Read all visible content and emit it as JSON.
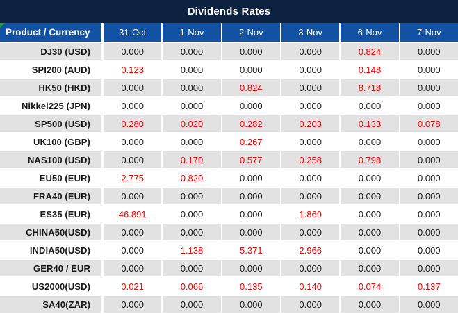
{
  "title": "Dividends Rates",
  "table": {
    "product_header": "Product / Currency",
    "date_headers": [
      "31-Oct",
      "1-Nov",
      "2-Nov",
      "3-Nov",
      "6-Nov",
      "7-Nov"
    ],
    "zero_value": "0.000",
    "rows": [
      {
        "product": "DJ30 (USD)",
        "values": [
          "0.000",
          "0.000",
          "0.000",
          "0.000",
          "0.824",
          "0.000"
        ]
      },
      {
        "product": "SPI200 (AUD)",
        "values": [
          "0.123",
          "0.000",
          "0.000",
          "0.000",
          "0.148",
          "0.000"
        ]
      },
      {
        "product": "HK50 (HKD)",
        "values": [
          "0.000",
          "0.000",
          "0.824",
          "0.000",
          "8.718",
          "0.000"
        ]
      },
      {
        "product": "Nikkei225 (JPN)",
        "values": [
          "0.000",
          "0.000",
          "0.000",
          "0.000",
          "0.000",
          "0.000"
        ]
      },
      {
        "product": "SP500 (USD)",
        "values": [
          "0.280",
          "0.020",
          "0.282",
          "0.203",
          "0.133",
          "0.078"
        ]
      },
      {
        "product": "UK100 (GBP)",
        "values": [
          "0.000",
          "0.000",
          "0.267",
          "0.000",
          "0.000",
          "0.000"
        ]
      },
      {
        "product": "NAS100 (USD)",
        "values": [
          "0.000",
          "0.170",
          "0.577",
          "0.258",
          "0.798",
          "0.000"
        ]
      },
      {
        "product": "EU50 (EUR)",
        "values": [
          "2.775",
          "0.820",
          "0.000",
          "0.000",
          "0.000",
          "0.000"
        ]
      },
      {
        "product": "FRA40 (EUR)",
        "values": [
          "0.000",
          "0.000",
          "0.000",
          "0.000",
          "0.000",
          "0.000"
        ]
      },
      {
        "product": "ES35 (EUR)",
        "values": [
          "46.891",
          "0.000",
          "0.000",
          "1.869",
          "0.000",
          "0.000"
        ]
      },
      {
        "product": "CHINA50(USD)",
        "values": [
          "0.000",
          "0.000",
          "0.000",
          "0.000",
          "0.000",
          "0.000"
        ]
      },
      {
        "product": "INDIA50(USD)",
        "values": [
          "0.000",
          "1.138",
          "5.371",
          "2.966",
          "0.000",
          "0.000"
        ]
      },
      {
        "product": "GER40 / EUR",
        "values": [
          "0.000",
          "0.000",
          "0.000",
          "0.000",
          "0.000",
          "0.000"
        ]
      },
      {
        "product": "US2000(USD)",
        "values": [
          "0.021",
          "0.066",
          "0.135",
          "0.140",
          "0.074",
          "0.137"
        ]
      },
      {
        "product": "SA40(ZAR)",
        "values": [
          "0.000",
          "0.000",
          "0.000",
          "0.000",
          "0.000",
          "0.000"
        ]
      }
    ]
  },
  "colors": {
    "title_bar_bg": "#0c2240",
    "header_bg": "#1252a5",
    "row_alt_bg": "#e2e2e2",
    "row_bg": "#ffffff",
    "zero_text": "#1a1a1a",
    "nonzero_text": "#f50000",
    "corner_triangle": "#21a038"
  }
}
